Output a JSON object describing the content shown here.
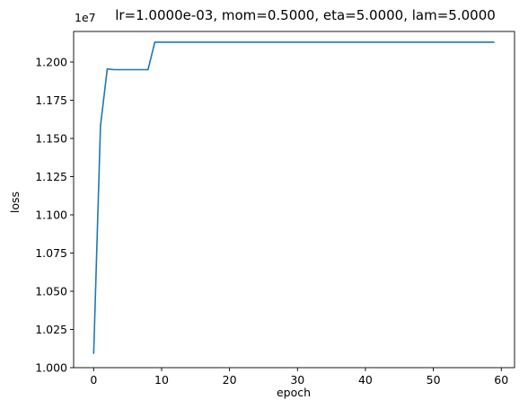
{
  "chart_data": {
    "type": "line",
    "title": "lr=1.0000e-03, mom=0.5000, eta=5.0000, lam=5.0000",
    "xlabel": "epoch",
    "ylabel": "loss",
    "y_offset_label": "1e7",
    "xlim": [
      -2.95,
      61.95
    ],
    "ylim": [
      1.0,
      1.22
    ],
    "x_ticks": [
      0,
      10,
      20,
      30,
      40,
      50,
      60
    ],
    "x_tick_labels": [
      "0",
      "10",
      "20",
      "30",
      "40",
      "50",
      "60"
    ],
    "y_ticks": [
      1.0,
      1.025,
      1.05,
      1.075,
      1.1,
      1.125,
      1.15,
      1.175,
      1.2
    ],
    "y_tick_labels": [
      "1.000",
      "1.025",
      "1.050",
      "1.075",
      "1.100",
      "1.125",
      "1.150",
      "1.175",
      "1.200"
    ],
    "grid": false,
    "legend": "none",
    "series": [
      {
        "color": "#1f77b4",
        "x": [
          0,
          1,
          2,
          3,
          4,
          5,
          6,
          7,
          8,
          9,
          10,
          11,
          12,
          13,
          14,
          15,
          16,
          17,
          18,
          19,
          20,
          21,
          22,
          23,
          24,
          25,
          26,
          27,
          28,
          29,
          30,
          31,
          32,
          33,
          34,
          35,
          36,
          37,
          38,
          39,
          40,
          41,
          42,
          43,
          44,
          45,
          46,
          47,
          48,
          49,
          50,
          51,
          52,
          53,
          54,
          55,
          56,
          57,
          58,
          59
        ],
        "values": [
          1.009,
          1.158,
          1.1955,
          1.195,
          1.195,
          1.195,
          1.195,
          1.195,
          1.195,
          1.213,
          1.213,
          1.213,
          1.213,
          1.213,
          1.213,
          1.213,
          1.213,
          1.213,
          1.213,
          1.213,
          1.213,
          1.213,
          1.213,
          1.213,
          1.213,
          1.213,
          1.213,
          1.213,
          1.213,
          1.213,
          1.213,
          1.213,
          1.213,
          1.213,
          1.213,
          1.213,
          1.213,
          1.213,
          1.213,
          1.213,
          1.213,
          1.213,
          1.213,
          1.213,
          1.213,
          1.213,
          1.213,
          1.213,
          1.213,
          1.213,
          1.213,
          1.213,
          1.213,
          1.213,
          1.213,
          1.213,
          1.213,
          1.213,
          1.213,
          1.213
        ]
      }
    ]
  }
}
